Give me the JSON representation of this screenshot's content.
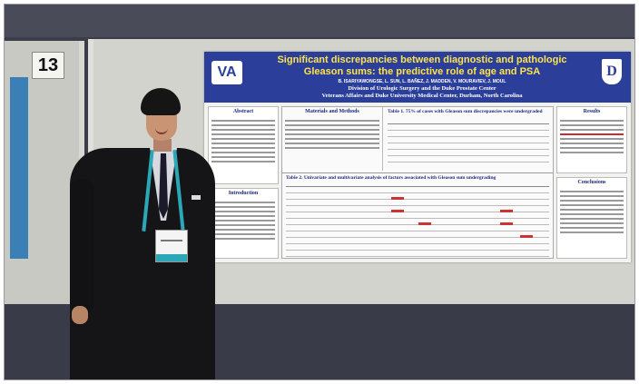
{
  "panel": {
    "number": "13"
  },
  "poster": {
    "title_line1": "Significant discrepancies between diagnostic and pathologic",
    "title_line2": "Gleason sums:  the predictive role of age and PSA",
    "authors": "B. ISARIYAWONGSE, L. SUN, L. BAÑEZ, J. MADDEN, V. MOURAVIEV, J. MOUL",
    "division": "Division of Urologic Surgery and the Duke Prostate Center",
    "institution": "Veterans Affairs and Duke University Medical Center, Durham, North Carolina",
    "logo_left": "VA",
    "logo_right": "D",
    "section_abstract": "Abstract",
    "section_introduction": "Introduction",
    "section_methods": "Materials and Methods",
    "section_results": "Results",
    "section_conclusions": "Conclusions",
    "table1_title": "Table 1.  75% of cases with Gleason sum discrepancies were undergraded",
    "table2_title": "Table 2.  Univariate and multivariate analysis of factors associated with Gleason sum undergrading"
  },
  "colors": {
    "poster_header": "#2b3f9a",
    "title_yellow": "#ffe34a",
    "lanyard": "#2aa8b8"
  }
}
